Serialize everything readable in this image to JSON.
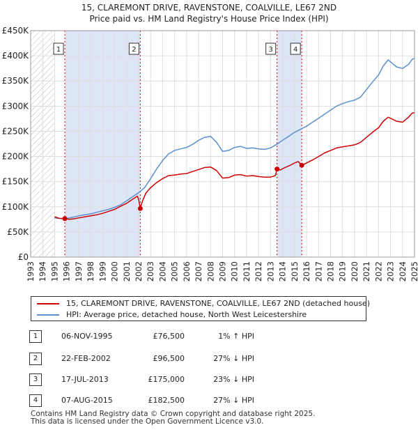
{
  "chart_data": {
    "type": "line",
    "title": "15, CLAREMONT DRIVE, RAVENSTONE, COALVILLE, LE67 2ND",
    "subtitle": "Price paid vs. HM Land Registry's House Price Index (HPI)",
    "xlim": [
      1993,
      2025
    ],
    "ylim": [
      0,
      450000
    ],
    "x_ticks": [
      1993,
      1994,
      1995,
      1996,
      1997,
      1998,
      1999,
      2000,
      2001,
      2002,
      2003,
      2004,
      2005,
      2006,
      2007,
      2008,
      2009,
      2010,
      2011,
      2012,
      2013,
      2014,
      2015,
      2016,
      2017,
      2018,
      2019,
      2020,
      2021,
      2022,
      2023,
      2024,
      2025
    ],
    "y_ticks": [
      {
        "value": 0,
        "label": "£0"
      },
      {
        "value": 50000,
        "label": "£50K"
      },
      {
        "value": 100000,
        "label": "£100K"
      },
      {
        "value": 150000,
        "label": "£150K"
      },
      {
        "value": 200000,
        "label": "£200K"
      },
      {
        "value": 250000,
        "label": "£250K"
      },
      {
        "value": 300000,
        "label": "£300K"
      },
      {
        "value": 350000,
        "label": "£350K"
      },
      {
        "value": 400000,
        "label": "£400K"
      },
      {
        "value": 450000,
        "label": "£450K"
      }
    ],
    "hatched_before": 1995.0,
    "shaded_ranges": [
      [
        1995.85,
        2002.14
      ],
      [
        2013.54,
        2015.6
      ]
    ],
    "series": [
      {
        "name": "15, CLAREMONT DRIVE, RAVENSTONE, COALVILLE, LE67 2ND (detached house)",
        "color": "#cc0000",
        "points": [
          [
            1995.0,
            80000
          ],
          [
            1995.4,
            77000
          ],
          [
            1995.85,
            76500
          ],
          [
            1996.2,
            75000
          ],
          [
            1996.6,
            76000
          ],
          [
            1997.0,
            78000
          ],
          [
            1997.5,
            80000
          ],
          [
            1998.0,
            82000
          ],
          [
            1998.5,
            84000
          ],
          [
            1999.0,
            87000
          ],
          [
            1999.5,
            91000
          ],
          [
            2000.0,
            95000
          ],
          [
            2000.5,
            101000
          ],
          [
            2001.0,
            107000
          ],
          [
            2001.5,
            115000
          ],
          [
            2001.9,
            121000
          ],
          [
            2002.0,
            115000
          ],
          [
            2002.14,
            96500
          ],
          [
            2002.3,
            110000
          ],
          [
            2002.6,
            127000
          ],
          [
            2003.0,
            138000
          ],
          [
            2003.5,
            148000
          ],
          [
            2004.0,
            156000
          ],
          [
            2004.5,
            162000
          ],
          [
            2005.0,
            163000
          ],
          [
            2005.5,
            165000
          ],
          [
            2006.0,
            166000
          ],
          [
            2006.5,
            170000
          ],
          [
            2007.0,
            174000
          ],
          [
            2007.5,
            178000
          ],
          [
            2008.0,
            179000
          ],
          [
            2008.5,
            172000
          ],
          [
            2009.0,
            157000
          ],
          [
            2009.5,
            158000
          ],
          [
            2010.0,
            163000
          ],
          [
            2010.5,
            164000
          ],
          [
            2011.0,
            161000
          ],
          [
            2011.5,
            162000
          ],
          [
            2012.0,
            160000
          ],
          [
            2012.5,
            159000
          ],
          [
            2013.0,
            159000
          ],
          [
            2013.4,
            162000
          ],
          [
            2013.54,
            175000
          ],
          [
            2013.8,
            173000
          ],
          [
            2014.2,
            178000
          ],
          [
            2014.6,
            182000
          ],
          [
            2015.0,
            187000
          ],
          [
            2015.3,
            190000
          ],
          [
            2015.6,
            182500
          ],
          [
            2016.0,
            187000
          ],
          [
            2016.5,
            193000
          ],
          [
            2017.0,
            200000
          ],
          [
            2017.5,
            207000
          ],
          [
            2018.0,
            212000
          ],
          [
            2018.5,
            217000
          ],
          [
            2019.0,
            219000
          ],
          [
            2019.5,
            221000
          ],
          [
            2020.0,
            223000
          ],
          [
            2020.5,
            228000
          ],
          [
            2021.0,
            238000
          ],
          [
            2021.5,
            248000
          ],
          [
            2022.0,
            257000
          ],
          [
            2022.4,
            270000
          ],
          [
            2022.8,
            278000
          ],
          [
            2023.0,
            276000
          ],
          [
            2023.5,
            270000
          ],
          [
            2024.0,
            268000
          ],
          [
            2024.5,
            278000
          ],
          [
            2024.8,
            286000
          ],
          [
            2025.0,
            287000
          ]
        ]
      },
      {
        "name": "HPI: Average price, detached house, North West Leicestershire",
        "color": "#5b8fd0",
        "points": [
          [
            1995.0,
            78000
          ],
          [
            1995.5,
            76500
          ],
          [
            1996.0,
            77000
          ],
          [
            1996.5,
            79000
          ],
          [
            1997.0,
            82000
          ],
          [
            1997.5,
            84000
          ],
          [
            1998.0,
            86000
          ],
          [
            1998.5,
            89000
          ],
          [
            1999.0,
            92000
          ],
          [
            1999.5,
            95000
          ],
          [
            2000.0,
            99000
          ],
          [
            2000.5,
            104000
          ],
          [
            2001.0,
            112000
          ],
          [
            2001.5,
            120000
          ],
          [
            2002.0,
            128000
          ],
          [
            2002.5,
            138000
          ],
          [
            2003.0,
            156000
          ],
          [
            2003.5,
            175000
          ],
          [
            2004.0,
            192000
          ],
          [
            2004.5,
            205000
          ],
          [
            2005.0,
            212000
          ],
          [
            2005.5,
            215000
          ],
          [
            2006.0,
            218000
          ],
          [
            2006.5,
            224000
          ],
          [
            2007.0,
            232000
          ],
          [
            2007.5,
            238000
          ],
          [
            2008.0,
            240000
          ],
          [
            2008.5,
            228000
          ],
          [
            2009.0,
            210000
          ],
          [
            2009.5,
            212000
          ],
          [
            2010.0,
            218000
          ],
          [
            2010.5,
            220000
          ],
          [
            2011.0,
            216000
          ],
          [
            2011.5,
            217000
          ],
          [
            2012.0,
            215000
          ],
          [
            2012.5,
            214000
          ],
          [
            2013.0,
            217000
          ],
          [
            2013.5,
            224000
          ],
          [
            2014.0,
            232000
          ],
          [
            2014.5,
            240000
          ],
          [
            2015.0,
            248000
          ],
          [
            2015.5,
            254000
          ],
          [
            2016.0,
            260000
          ],
          [
            2016.5,
            268000
          ],
          [
            2017.0,
            276000
          ],
          [
            2017.5,
            284000
          ],
          [
            2018.0,
            292000
          ],
          [
            2018.5,
            300000
          ],
          [
            2019.0,
            305000
          ],
          [
            2019.5,
            309000
          ],
          [
            2020.0,
            312000
          ],
          [
            2020.5,
            318000
          ],
          [
            2021.0,
            333000
          ],
          [
            2021.5,
            348000
          ],
          [
            2022.0,
            362000
          ],
          [
            2022.4,
            380000
          ],
          [
            2022.8,
            392000
          ],
          [
            2023.0,
            388000
          ],
          [
            2023.5,
            378000
          ],
          [
            2024.0,
            375000
          ],
          [
            2024.5,
            383000
          ],
          [
            2024.8,
            393000
          ],
          [
            2025.0,
            395000
          ]
        ]
      }
    ],
    "sales": [
      {
        "label": "1",
        "x": 1995.85,
        "price": 76500
      },
      {
        "label": "2",
        "x": 2002.14,
        "price": 96500
      },
      {
        "label": "3",
        "x": 2013.54,
        "price": 175000
      },
      {
        "label": "4",
        "x": 2015.6,
        "price": 182500
      }
    ]
  },
  "legend": {
    "property_label": "15, CLAREMONT DRIVE, RAVENSTONE, COALVILLE, LE67 2ND (detached house)",
    "hpi_label": "HPI: Average price, detached house, North West Leicestershire"
  },
  "transactions": [
    {
      "num": "1",
      "date": "06-NOV-1995",
      "price": "£76,500",
      "hpi": "1% ↑ HPI"
    },
    {
      "num": "2",
      "date": "22-FEB-2002",
      "price": "£96,500",
      "hpi": "27% ↓ HPI"
    },
    {
      "num": "3",
      "date": "17-JUL-2013",
      "price": "£175,000",
      "hpi": "23% ↓ HPI"
    },
    {
      "num": "4",
      "date": "07-AUG-2015",
      "price": "£182,500",
      "hpi": "27% ↓ HPI"
    }
  ],
  "footer": {
    "line1": "Contains HM Land Registry data © Crown copyright and database right 2025.",
    "line2": "This data is licensed under the Open Government Licence v3.0."
  },
  "colors": {
    "property": "#cc0000",
    "hpi": "#5b8fd0",
    "shade": "#dce6f7",
    "grid": "#dddddd"
  }
}
